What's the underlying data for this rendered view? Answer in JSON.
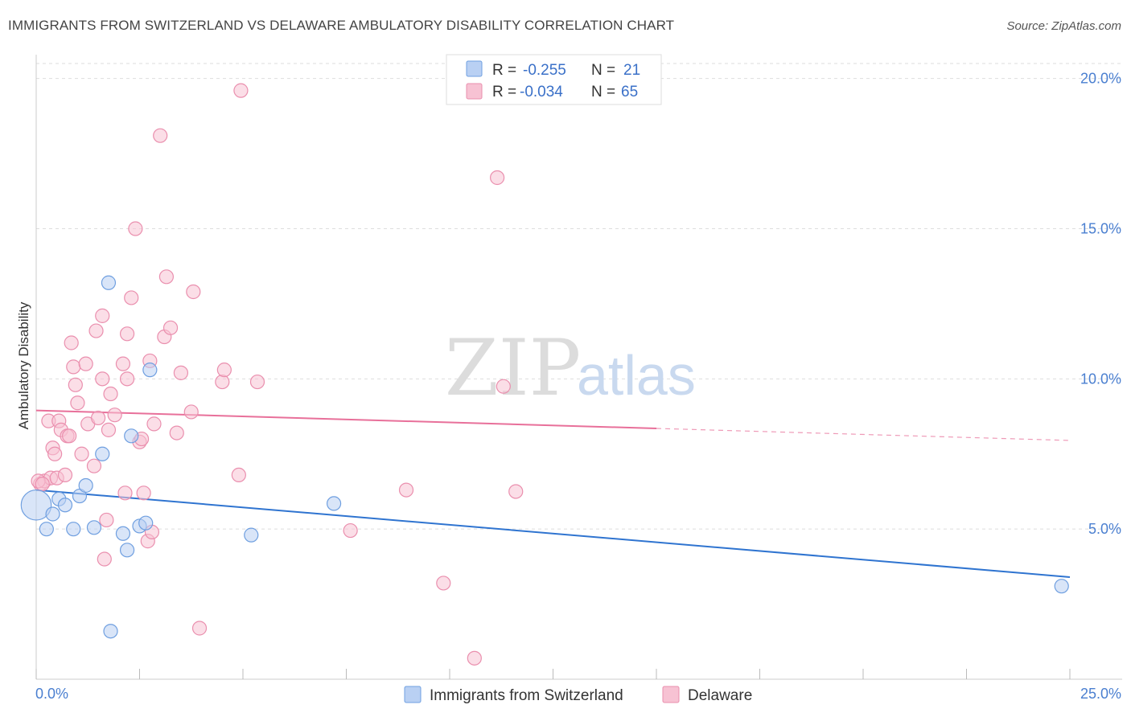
{
  "header": {
    "title": "IMMIGRANTS FROM SWITZERLAND VS DELAWARE AMBULATORY DISABILITY CORRELATION CHART",
    "source": "Source: ZipAtlas.com"
  },
  "watermark": {
    "part1": "ZIP",
    "part2": "atlas"
  },
  "colors": {
    "blue": "#6f9fe0",
    "blue_fill": "#b9d0f3",
    "blue_line": "#2f74d0",
    "pink": "#ea8fae",
    "pink_fill": "#f7c2d3",
    "pink_line": "#e8709a",
    "grid": "#dddddd",
    "tick_text": "#4a7fd0"
  },
  "legend": {
    "rows": [
      {
        "r_label": "R =",
        "r_value": "-0.255",
        "n_label": "N =",
        "n_value": "21"
      },
      {
        "r_label": "R =",
        "r_value": "-0.034",
        "n_label": "N =",
        "n_value": "65"
      }
    ]
  },
  "chart_data": {
    "type": "scatter",
    "title": "IMMIGRANTS FROM SWITZERLAND VS DELAWARE AMBULATORY DISABILITY CORRELATION CHART",
    "xlabel": "",
    "ylabel": "Ambulatory Disability",
    "xlim": [
      0,
      25
    ],
    "ylim": [
      0,
      20.5
    ],
    "x_tick_labels": [
      "0.0%",
      "25.0%"
    ],
    "y_ticks": [
      5,
      10,
      15,
      20
    ],
    "y_tick_labels": [
      "5.0%",
      "10.0%",
      "15.0%",
      "20.0%"
    ],
    "series": [
      {
        "name": "Immigrants from Switzerland",
        "color": "blue",
        "trend": {
          "x0": 0,
          "y0": 6.3,
          "x1": 25,
          "y1": 3.4,
          "solid_to": 25
        },
        "points": [
          [
            0.0,
            5.8,
            2.2
          ],
          [
            0.25,
            5.0,
            1
          ],
          [
            0.4,
            5.5,
            1
          ],
          [
            0.55,
            6.0,
            1
          ],
          [
            0.7,
            5.8,
            1
          ],
          [
            0.9,
            5.0,
            1
          ],
          [
            1.05,
            6.1,
            1
          ],
          [
            1.2,
            6.45,
            1
          ],
          [
            1.4,
            5.05,
            1
          ],
          [
            1.6,
            7.5,
            1
          ],
          [
            1.75,
            13.2,
            1
          ],
          [
            1.8,
            1.6,
            1
          ],
          [
            2.1,
            4.85,
            1
          ],
          [
            2.2,
            4.3,
            1
          ],
          [
            2.3,
            8.1,
            1
          ],
          [
            2.5,
            5.1,
            1
          ],
          [
            2.65,
            5.2,
            1
          ],
          [
            2.75,
            10.3,
            1
          ],
          [
            5.2,
            4.8,
            1
          ],
          [
            7.2,
            5.85,
            1
          ],
          [
            24.8,
            3.1,
            1
          ]
        ]
      },
      {
        "name": "Delaware",
        "color": "pink",
        "trend": {
          "x0": 0,
          "y0": 8.95,
          "x1": 25,
          "y1": 7.95,
          "solid_to": 15.0
        },
        "points": [
          [
            0.1,
            6.5,
            1
          ],
          [
            0.2,
            6.6,
            1
          ],
          [
            0.3,
            8.6,
            1
          ],
          [
            0.35,
            6.7,
            1
          ],
          [
            0.4,
            7.7,
            1
          ],
          [
            0.45,
            7.5,
            1
          ],
          [
            0.5,
            6.7,
            1
          ],
          [
            0.55,
            8.6,
            1
          ],
          [
            0.6,
            8.3,
            1
          ],
          [
            0.7,
            6.8,
            1
          ],
          [
            0.75,
            8.1,
            1
          ],
          [
            0.8,
            8.1,
            1
          ],
          [
            0.85,
            11.2,
            1
          ],
          [
            0.9,
            10.4,
            1
          ],
          [
            0.95,
            9.8,
            1
          ],
          [
            1.0,
            9.2,
            1
          ],
          [
            1.1,
            7.5,
            1
          ],
          [
            1.2,
            10.5,
            1
          ],
          [
            1.25,
            8.5,
            1
          ],
          [
            1.4,
            7.1,
            1
          ],
          [
            1.45,
            11.6,
            1
          ],
          [
            1.5,
            8.7,
            1
          ],
          [
            1.6,
            12.1,
            1
          ],
          [
            1.6,
            10.0,
            1
          ],
          [
            1.65,
            4.0,
            1
          ],
          [
            1.7,
            5.3,
            1
          ],
          [
            1.75,
            8.3,
            1
          ],
          [
            1.8,
            9.5,
            1
          ],
          [
            1.9,
            8.8,
            1
          ],
          [
            2.1,
            10.5,
            1
          ],
          [
            2.15,
            6.2,
            1
          ],
          [
            2.2,
            11.5,
            1
          ],
          [
            2.2,
            10.0,
            1
          ],
          [
            2.3,
            12.7,
            1
          ],
          [
            2.4,
            15.0,
            1
          ],
          [
            2.5,
            7.9,
            1
          ],
          [
            2.55,
            8.0,
            1
          ],
          [
            2.6,
            6.2,
            1
          ],
          [
            2.7,
            4.6,
            1
          ],
          [
            2.75,
            10.6,
            1
          ],
          [
            2.8,
            4.9,
            1
          ],
          [
            2.85,
            8.5,
            1
          ],
          [
            3.0,
            18.1,
            1
          ],
          [
            3.1,
            11.4,
            1
          ],
          [
            3.15,
            13.4,
            1
          ],
          [
            3.25,
            11.7,
            1
          ],
          [
            3.4,
            8.2,
            1
          ],
          [
            3.5,
            10.2,
            1
          ],
          [
            3.75,
            8.9,
            1
          ],
          [
            3.8,
            12.9,
            1
          ],
          [
            3.95,
            1.7,
            1
          ],
          [
            4.5,
            9.9,
            1
          ],
          [
            4.55,
            10.3,
            1
          ],
          [
            4.9,
            6.8,
            1
          ],
          [
            4.95,
            19.6,
            1
          ],
          [
            5.35,
            9.9,
            1
          ],
          [
            7.6,
            4.95,
            1
          ],
          [
            8.95,
            6.3,
            1
          ],
          [
            9.85,
            3.2,
            1
          ],
          [
            10.6,
            0.7,
            1
          ],
          [
            11.15,
            16.7,
            1
          ],
          [
            11.3,
            9.75,
            1
          ],
          [
            11.6,
            6.25,
            1
          ],
          [
            0.05,
            6.6,
            1
          ],
          [
            0.15,
            6.5,
            1
          ]
        ]
      }
    ],
    "legend_placement": "top-center"
  }
}
